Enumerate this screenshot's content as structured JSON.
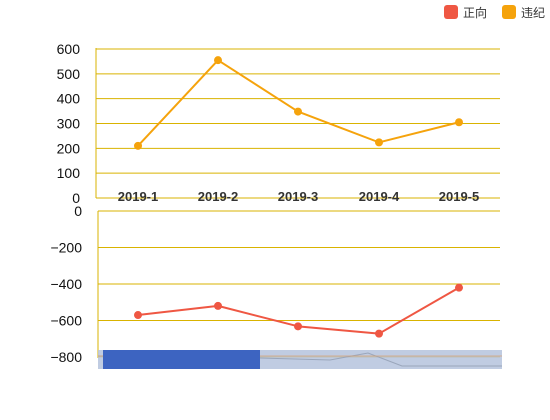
{
  "chart_data": [
    {
      "type": "line",
      "categories": [
        "2019-1",
        "2019-2",
        "2019-3",
        "2019-4",
        "2019-5"
      ],
      "series": [
        {
          "name": "违纪",
          "values": [
            210,
            555,
            348,
            224,
            305
          ],
          "color": "#f5a30c"
        }
      ],
      "yticks": [
        0,
        100,
        200,
        300,
        400,
        500,
        600
      ],
      "ylim": [
        0,
        600
      ],
      "grid": true,
      "grid_color": "#d9b300",
      "legend": "top-right"
    },
    {
      "type": "line",
      "categories": [
        "2019-1",
        "2019-2",
        "2019-3",
        "2019-4",
        "2019-5"
      ],
      "series": [
        {
          "name": "正向",
          "values": [
            -570,
            -520,
            -632,
            -672,
            -420
          ],
          "color": "#ef5743"
        }
      ],
      "yticks": [
        0,
        -200,
        -400,
        -600,
        -800
      ],
      "ylim": [
        -800,
        0
      ],
      "grid": true,
      "grid_color": "#d9b300"
    }
  ],
  "legend": {
    "items": [
      {
        "name": "正向",
        "color": "#ef5743"
      },
      {
        "name": "违纪",
        "color": "#f5a30c"
      }
    ]
  },
  "datazoom": {
    "range_start": 0,
    "range_end": 0.4,
    "handle_color": "#3d64c1",
    "track_color": "#b5c3dd"
  }
}
